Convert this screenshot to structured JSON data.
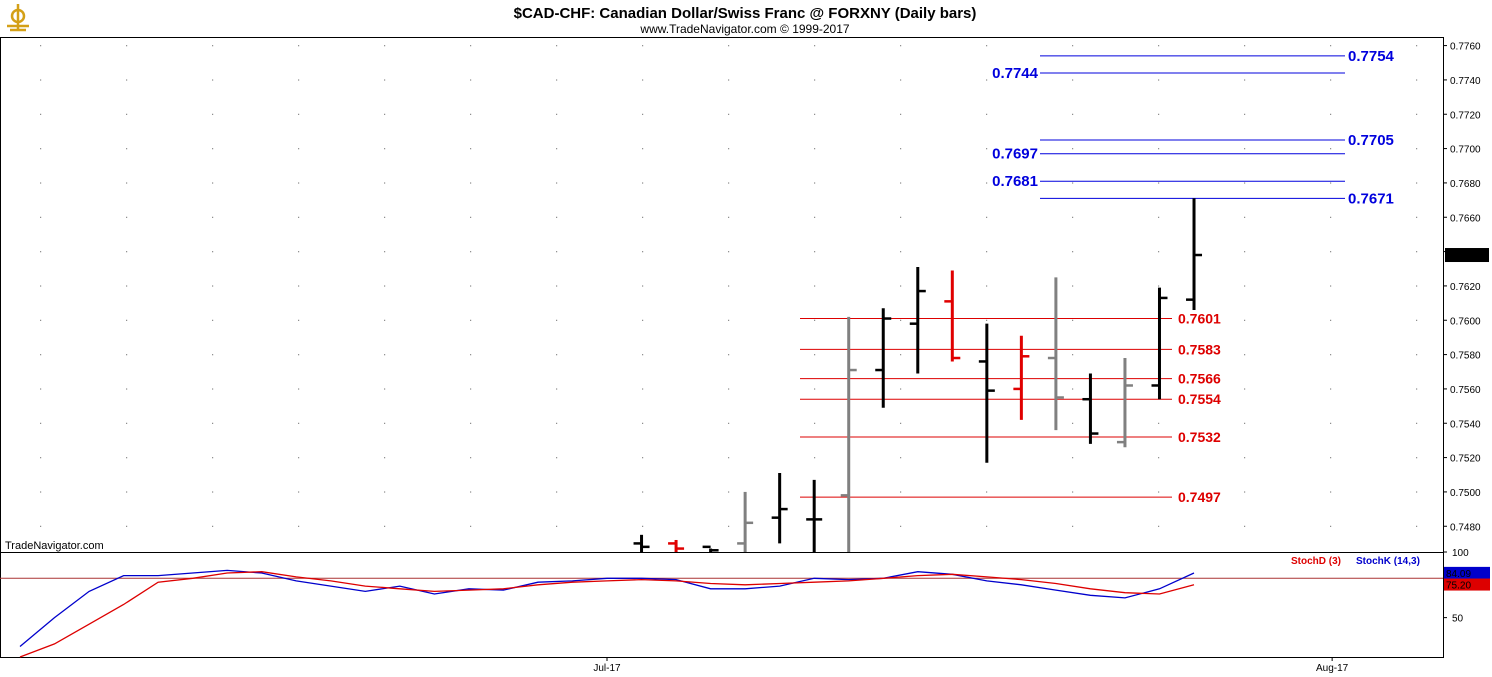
{
  "header": {
    "title": "$CAD-CHF:  Canadian Dollar/Swiss Franc @ FORXNY  (Daily bars)",
    "subtitle": "www.TradeNavigator.com © 1999-2017",
    "watermark": "TradeNavigator.com",
    "logo_icon": "compass-logo-icon"
  },
  "colors": {
    "up_bar": "#000000",
    "down_bar": "#e00000",
    "neutral_bar": "#808080",
    "target_levels": "#0000dd",
    "support_levels": "#dd0000",
    "stoch_k": "#0000cc",
    "stoch_d": "#dd0000",
    "last_price_tag": "#000000"
  },
  "chart_data": [
    {
      "type": "ohlc",
      "title": "$CAD-CHF:  Canadian Dollar/Swiss Franc @ FORXNY  (Daily bars)",
      "ylim": [
        0.7465,
        0.7765
      ],
      "y_ticks": [
        "0.7480",
        "0.7500",
        "0.7520",
        "0.7540",
        "0.7560",
        "0.7580",
        "0.7600",
        "0.7620",
        "0.7640",
        "0.7660",
        "0.7680",
        "0.7700",
        "0.7720",
        "0.7740",
        "0.7760"
      ],
      "x_ticks": [
        {
          "label": "Jul-17",
          "index": 17
        },
        {
          "label": "Aug-17",
          "index": 38
        }
      ],
      "bars": [
        {
          "i": 18,
          "o": 0.747,
          "h": 0.7475,
          "l": 0.7465,
          "c": 0.7468,
          "color": "up"
        },
        {
          "i": 19,
          "o": 0.747,
          "h": 0.7472,
          "l": 0.7465,
          "c": 0.7467,
          "color": "down"
        },
        {
          "i": 20,
          "o": 0.7468,
          "h": 0.7467,
          "l": 0.7465,
          "c": 0.7466,
          "color": "up"
        },
        {
          "i": 21,
          "o": 0.747,
          "h": 0.75,
          "l": 0.7465,
          "c": 0.7482,
          "color": "neutral"
        },
        {
          "i": 22,
          "o": 0.7485,
          "h": 0.7511,
          "l": 0.747,
          "c": 0.749,
          "color": "up"
        },
        {
          "i": 23,
          "o": 0.7484,
          "h": 0.7507,
          "l": 0.7465,
          "c": 0.7484,
          "color": "up"
        },
        {
          "i": 24,
          "o": 0.7498,
          "h": 0.7602,
          "l": 0.7465,
          "c": 0.7571,
          "color": "neutral"
        },
        {
          "i": 25,
          "o": 0.7571,
          "h": 0.7607,
          "l": 0.7549,
          "c": 0.7601,
          "color": "up"
        },
        {
          "i": 26,
          "o": 0.7598,
          "h": 0.7631,
          "l": 0.7569,
          "c": 0.7617,
          "color": "up"
        },
        {
          "i": 27,
          "o": 0.7611,
          "h": 0.7629,
          "l": 0.7576,
          "c": 0.7578,
          "color": "down"
        },
        {
          "i": 28,
          "o": 0.7576,
          "h": 0.7598,
          "l": 0.7517,
          "c": 0.7559,
          "color": "up"
        },
        {
          "i": 29,
          "o": 0.756,
          "h": 0.7591,
          "l": 0.7542,
          "c": 0.7579,
          "color": "down"
        },
        {
          "i": 30,
          "o": 0.7578,
          "h": 0.7625,
          "l": 0.7536,
          "c": 0.7555,
          "color": "neutral"
        },
        {
          "i": 31,
          "o": 0.7554,
          "h": 0.7569,
          "l": 0.7528,
          "c": 0.7534,
          "color": "up"
        },
        {
          "i": 32,
          "o": 0.7529,
          "h": 0.7578,
          "l": 0.7526,
          "c": 0.7562,
          "color": "neutral"
        },
        {
          "i": 33,
          "o": 0.7562,
          "h": 0.7619,
          "l": 0.7554,
          "c": 0.7613,
          "color": "up"
        },
        {
          "i": 34,
          "o": 0.7612,
          "h": 0.7671,
          "l": 0.7606,
          "c": 0.7638,
          "color": "up"
        }
      ],
      "last_price": "0.7638",
      "target_levels": [
        {
          "value": 0.7754,
          "label": "0.7754",
          "side": "right"
        },
        {
          "value": 0.7744,
          "label": "0.7744",
          "side": "left"
        },
        {
          "value": 0.7705,
          "label": "0.7705",
          "side": "right"
        },
        {
          "value": 0.7697,
          "label": "0.7697",
          "side": "left"
        },
        {
          "value": 0.7681,
          "label": "0.7681",
          "side": "left"
        },
        {
          "value": 0.7671,
          "label": "0.7671",
          "side": "right"
        }
      ],
      "support_levels": [
        {
          "value": 0.7601,
          "label": "0.7601"
        },
        {
          "value": 0.7583,
          "label": "0.7583"
        },
        {
          "value": 0.7566,
          "label": "0.7566"
        },
        {
          "value": 0.7554,
          "label": "0.7554"
        },
        {
          "value": 0.7532,
          "label": "0.7532"
        },
        {
          "value": 0.7497,
          "label": "0.7497"
        }
      ]
    },
    {
      "type": "line",
      "ylim": [
        20,
        100
      ],
      "y_ticks": [
        "50",
        "100"
      ],
      "reference_line": 80,
      "legend": [
        "StochD (3)",
        "StochK (14,3)"
      ],
      "series": [
        {
          "name": "StochK (14,3)",
          "key": "k",
          "last": "84.09",
          "values": [
            [
              0,
              28
            ],
            [
              1,
              50
            ],
            [
              2,
              70
            ],
            [
              3,
              82
            ],
            [
              4,
              82
            ],
            [
              5,
              84
            ],
            [
              6,
              86
            ],
            [
              7,
              84
            ],
            [
              8,
              78
            ],
            [
              9,
              74
            ],
            [
              10,
              70
            ],
            [
              11,
              74
            ],
            [
              12,
              68
            ],
            [
              13,
              72
            ],
            [
              14,
              71
            ],
            [
              15,
              77
            ],
            [
              16,
              78
            ],
            [
              17,
              80
            ],
            [
              18,
              80
            ],
            [
              19,
              79
            ],
            [
              20,
              72
            ],
            [
              21,
              72
            ],
            [
              22,
              74
            ],
            [
              23,
              80
            ],
            [
              24,
              79
            ],
            [
              25,
              80
            ],
            [
              26,
              85
            ],
            [
              27,
              83
            ],
            [
              28,
              78
            ],
            [
              29,
              75
            ],
            [
              30,
              71
            ],
            [
              31,
              67
            ],
            [
              32,
              65
            ],
            [
              33,
              72
            ],
            [
              34,
              84
            ]
          ]
        },
        {
          "name": "StochD (3)",
          "key": "d",
          "last": "75.20",
          "values": [
            [
              0,
              20
            ],
            [
              1,
              30
            ],
            [
              2,
              45
            ],
            [
              3,
              60
            ],
            [
              4,
              77
            ],
            [
              5,
              80
            ],
            [
              6,
              84
            ],
            [
              7,
              85
            ],
            [
              8,
              81
            ],
            [
              9,
              78
            ],
            [
              10,
              74
            ],
            [
              11,
              72
            ],
            [
              12,
              70
            ],
            [
              13,
              71
            ],
            [
              14,
              72
            ],
            [
              15,
              75
            ],
            [
              16,
              77
            ],
            [
              17,
              78
            ],
            [
              18,
              79
            ],
            [
              19,
              78
            ],
            [
              20,
              76
            ],
            [
              21,
              75
            ],
            [
              22,
              76
            ],
            [
              23,
              77
            ],
            [
              24,
              78
            ],
            [
              25,
              80
            ],
            [
              26,
              82
            ],
            [
              27,
              83
            ],
            [
              28,
              81
            ],
            [
              29,
              79
            ],
            [
              30,
              76
            ],
            [
              31,
              72
            ],
            [
              32,
              69
            ],
            [
              33,
              68
            ],
            [
              34,
              75
            ]
          ]
        }
      ]
    }
  ]
}
